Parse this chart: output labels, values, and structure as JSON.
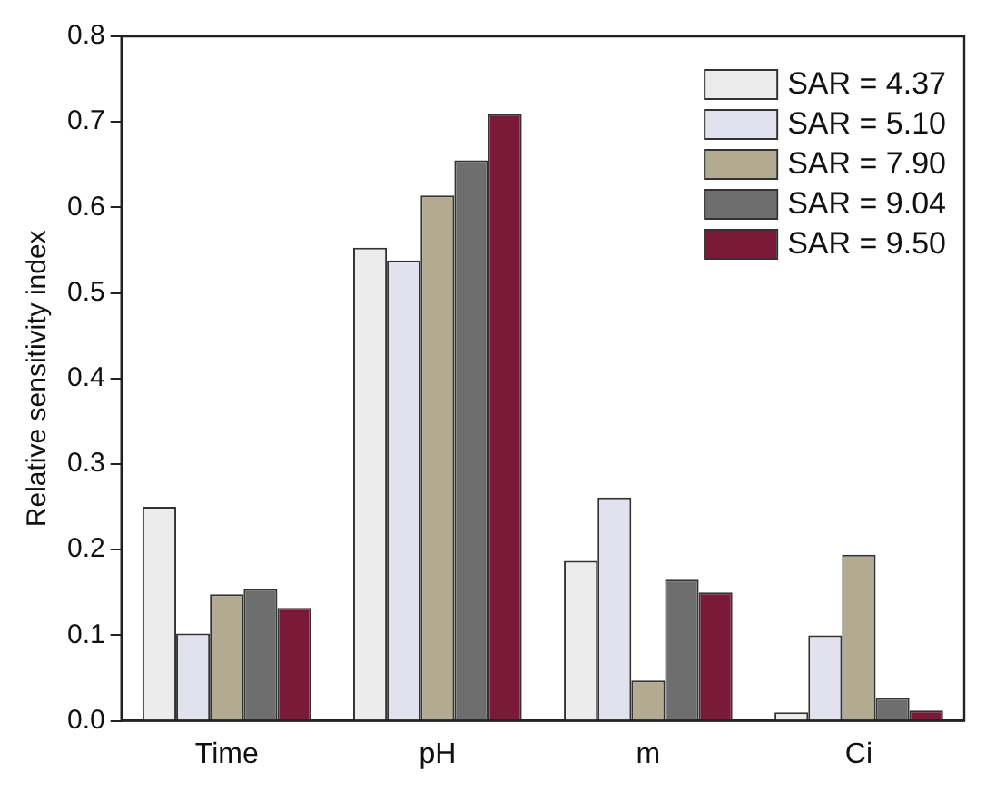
{
  "chart_data": {
    "type": "bar",
    "ylabel": "Relative sensitivity index",
    "categories": [
      "Time",
      "pH",
      "m",
      "Ci"
    ],
    "series": [
      {
        "name": "SAR = 4.37",
        "color": "#ececec",
        "values": [
          0.25,
          0.553,
          0.187,
          0.01
        ]
      },
      {
        "name": "SAR = 5.10",
        "color": "#e2e2ee",
        "values": [
          0.102,
          0.538,
          0.261,
          0.1
        ]
      },
      {
        "name": "SAR = 7.90",
        "color": "#b2ab92",
        "values": [
          0.148,
          0.614,
          0.047,
          0.194
        ]
      },
      {
        "name": "SAR = 9.04",
        "color": "#6e6e6e",
        "values": [
          0.154,
          0.655,
          0.165,
          0.027
        ]
      },
      {
        "name": "SAR = 9.50",
        "color": "#7a1a38",
        "values": [
          0.132,
          0.709,
          0.15,
          0.012
        ]
      }
    ],
    "ylim": [
      0,
      0.8
    ],
    "yticks": [
      {
        "value": 0,
        "label": "0.0"
      },
      {
        "value": 0.1,
        "label": "0.1"
      },
      {
        "value": 0.2,
        "label": "0.2"
      },
      {
        "value": 0.3,
        "label": "0.3"
      },
      {
        "value": 0.4,
        "label": "0.4"
      },
      {
        "value": 0.5,
        "label": "0.5"
      },
      {
        "value": 0.6,
        "label": "0.6"
      },
      {
        "value": 0.7,
        "label": "0.7"
      },
      {
        "value": 0.8,
        "label": "0.8"
      }
    ],
    "grid": false,
    "legend": "top right"
  }
}
